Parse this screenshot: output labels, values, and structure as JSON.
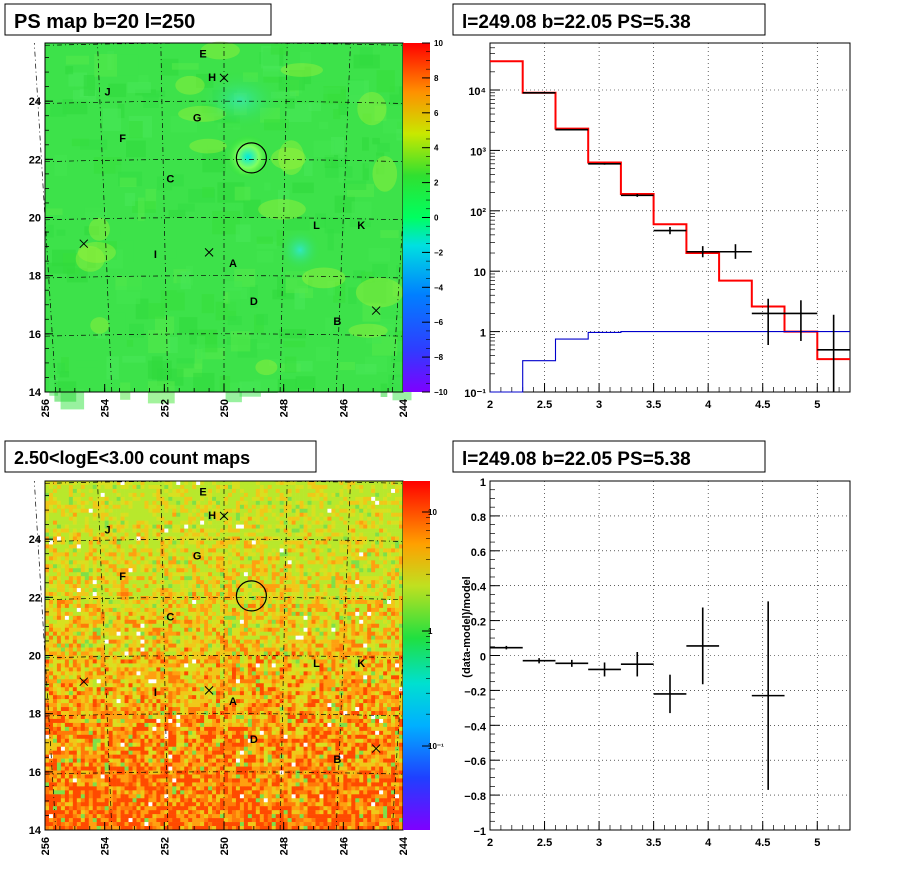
{
  "titles": {
    "ps_map": "PS map b=20 l=250",
    "spectrum": "l=249.08 b=22.05 PS=5.38",
    "count_map": "2.50<logE<3.00 count maps",
    "residual": "l=249.08 b=22.05 PS=5.38"
  },
  "map_axes": {
    "x_ticks": [
      "256",
      "254",
      "252",
      "250",
      "248",
      "246",
      "244"
    ],
    "y_ticks": [
      "24",
      "22",
      "20",
      "18",
      "16",
      "14"
    ]
  },
  "source_labels": [
    {
      "name": "E",
      "l": 250.7,
      "b": 25.5
    },
    {
      "name": "H",
      "l": 250.4,
      "b": 24.7
    },
    {
      "name": "J",
      "l": 253.9,
      "b": 24.2
    },
    {
      "name": "G",
      "l": 250.9,
      "b": 23.3
    },
    {
      "name": "F",
      "l": 253.4,
      "b": 22.6
    },
    {
      "name": "C",
      "l": 251.8,
      "b": 21.2
    },
    {
      "name": "L",
      "l": 246.9,
      "b": 19.6
    },
    {
      "name": "K",
      "l": 245.4,
      "b": 19.6
    },
    {
      "name": "I",
      "l": 252.3,
      "b": 18.6
    },
    {
      "name": "A",
      "l": 249.7,
      "b": 18.3
    },
    {
      "name": "D",
      "l": 249.0,
      "b": 17.0
    },
    {
      "name": "B",
      "l": 246.2,
      "b": 16.3
    }
  ],
  "cross_markers": [
    {
      "l": 250.0,
      "b": 24.8
    },
    {
      "l": 254.7,
      "b": 19.1
    },
    {
      "l": 250.5,
      "b": 18.8
    },
    {
      "l": 244.9,
      "b": 16.8
    }
  ],
  "ps_circle": {
    "l": 249.08,
    "b": 22.05
  },
  "ps_colorbar": {
    "ticks": [
      "10",
      "8",
      "6",
      "4",
      "2",
      "0",
      "−2",
      "−4",
      "−6",
      "−8",
      "−10"
    ],
    "range": [
      -10,
      10
    ]
  },
  "count_colorbar": {
    "ticks": [
      "10",
      "1",
      "10⁻¹"
    ],
    "log": true
  },
  "chart_data": [
    {
      "type": "heatmap",
      "panel": "ps_map",
      "title": "PS map b=20 l=250",
      "xlim": [
        256,
        244
      ],
      "ylim": [
        14,
        26
      ],
      "zlim": [
        -10,
        10
      ]
    },
    {
      "type": "line",
      "panel": "spectrum",
      "title": "l=249.08 b=22.05 PS=5.38",
      "xlim": [
        2,
        5.3
      ],
      "ylim": [
        0.1,
        60000
      ],
      "log_y": true,
      "x_ticks": [
        "2",
        "2.5",
        "3",
        "3.5",
        "4",
        "4.5",
        "5"
      ],
      "y_ticks": [
        "10⁻¹",
        "1",
        "10",
        "10²",
        "10³",
        "10⁴"
      ],
      "grid": true,
      "series": [
        {
          "color": "#ff0000",
          "edges": [
            2.0,
            2.3,
            2.6,
            2.9,
            3.2,
            3.5,
            3.8,
            4.1,
            4.4,
            4.7,
            5.0,
            5.3
          ],
          "values": [
            30000,
            9000,
            2300,
            630,
            190,
            60,
            20,
            7,
            2.6,
            1.0,
            0.35
          ]
        },
        {
          "color": "#0000cc",
          "edges": [
            2.0,
            2.3,
            2.6,
            2.9,
            3.2,
            3.5,
            3.8,
            4.1,
            4.4,
            4.7,
            5.0,
            5.3
          ],
          "values": [
            0.1,
            0.33,
            0.75,
            0.97,
            1.0,
            1.0,
            1.0,
            1.0,
            1.0,
            1.0,
            1.0
          ]
        },
        {
          "color": "#000000",
          "type": "points",
          "points": [
            {
              "x": 2.45,
              "y": 9000,
              "xerr": 0.15,
              "ylo": 9000,
              "yhi": 9000
            },
            {
              "x": 2.75,
              "y": 2200,
              "xerr": 0.15,
              "ylo": 2200,
              "yhi": 2200
            },
            {
              "x": 3.05,
              "y": 600,
              "xerr": 0.15,
              "ylo": 580,
              "yhi": 620
            },
            {
              "x": 3.35,
              "y": 180,
              "xerr": 0.15,
              "ylo": 170,
              "yhi": 190
            },
            {
              "x": 3.65,
              "y": 47,
              "xerr": 0.15,
              "ylo": 41,
              "yhi": 54
            },
            {
              "x": 3.95,
              "y": 21,
              "xerr": 0.15,
              "ylo": 17,
              "yhi": 26
            },
            {
              "x": 4.25,
              "y": 21,
              "xerr": 0.15,
              "ylo": 16,
              "yhi": 28
            },
            {
              "x": 4.55,
              "y": 2.0,
              "xerr": 0.15,
              "ylo": 0.6,
              "yhi": 3.5
            },
            {
              "x": 4.85,
              "y": 2.0,
              "xerr": 0.15,
              "ylo": 0.7,
              "yhi": 3.3
            },
            {
              "x": 5.15,
              "y": 0.5,
              "xerr": 0.15,
              "ylo": 0.1,
              "yhi": 1.9
            }
          ]
        }
      ]
    },
    {
      "type": "heatmap",
      "panel": "count_map",
      "title": "2.50<logE<3.00 count maps",
      "xlim": [
        256,
        244
      ],
      "ylim": [
        14,
        26
      ],
      "zscale": "log"
    },
    {
      "type": "scatter",
      "panel": "residual",
      "title": "l=249.08 b=22.05 PS=5.38",
      "ylabel": "(data-model)/model",
      "xlim": [
        2,
        5.3
      ],
      "ylim": [
        -1,
        1
      ],
      "x_ticks": [
        "2",
        "2.5",
        "3",
        "3.5",
        "4",
        "4.5",
        "5"
      ],
      "y_ticks": [
        "1",
        "0.8",
        "0.6",
        "0.4",
        "0.2",
        "0",
        "−0.2",
        "−0.4",
        "−0.6",
        "−0.8",
        "−1"
      ],
      "grid": true,
      "points": [
        {
          "x": 2.15,
          "y": 0.045,
          "xerr": 0.15,
          "yerr": 0.01
        },
        {
          "x": 2.45,
          "y": -0.03,
          "xerr": 0.15,
          "yerr": 0.015
        },
        {
          "x": 2.75,
          "y": -0.045,
          "xerr": 0.15,
          "yerr": 0.02
        },
        {
          "x": 3.05,
          "y": -0.08,
          "xerr": 0.15,
          "yerr": 0.04
        },
        {
          "x": 3.35,
          "y": -0.05,
          "xerr": 0.15,
          "yerr": 0.07
        },
        {
          "x": 3.65,
          "y": -0.22,
          "xerr": 0.15,
          "yerr": 0.11
        },
        {
          "x": 3.95,
          "y": 0.055,
          "xerr": 0.15,
          "yerr": 0.22
        },
        {
          "x": 4.55,
          "y": -0.23,
          "xerr": 0.15,
          "yerr": 0.54
        }
      ]
    }
  ]
}
